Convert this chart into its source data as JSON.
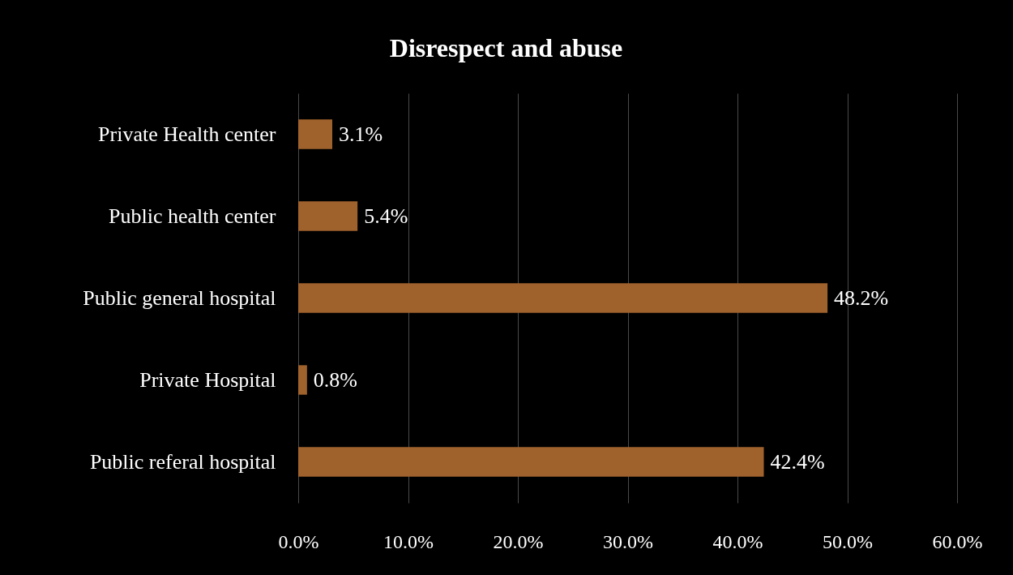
{
  "chart_data": {
    "type": "bar",
    "orientation": "horizontal",
    "title": "Disrespect and abuse",
    "categories": [
      "Private Health center",
      "Public health center",
      "Public general hospital",
      "Private Hospital",
      "Public referal hospital"
    ],
    "values": [
      3.1,
      5.4,
      48.2,
      0.8,
      42.4
    ],
    "value_labels": [
      "3.1%",
      "5.4%",
      "48.2%",
      "0.8%",
      "42.4%"
    ],
    "color": "#a0622d",
    "xlim": [
      0,
      60
    ],
    "xticks": [
      {
        "value": 0,
        "label": "0.0%"
      },
      {
        "value": 10,
        "label": "10.0%"
      },
      {
        "value": 20,
        "label": "20.0%"
      },
      {
        "value": 30,
        "label": "30.0%"
      },
      {
        "value": 40,
        "label": "40.0%"
      },
      {
        "value": 50,
        "label": "50.0%"
      },
      {
        "value": 60,
        "label": "60.0%"
      }
    ],
    "grid": "x"
  }
}
